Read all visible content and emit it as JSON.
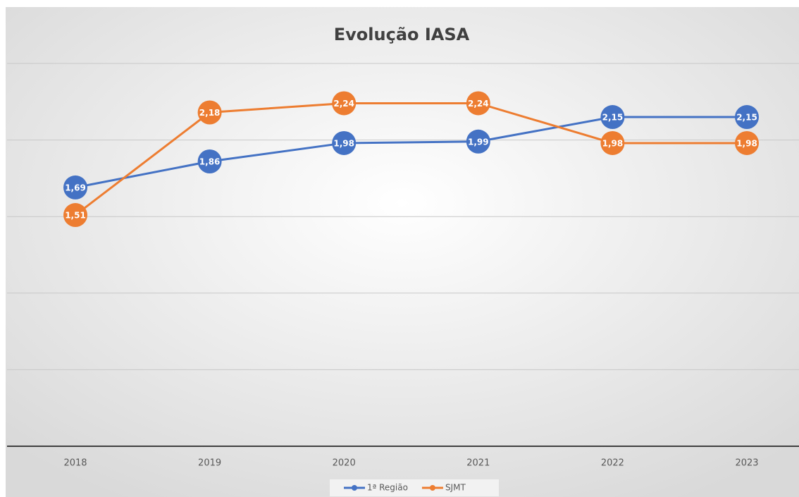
{
  "chart_data": {
    "type": "line",
    "title": "Evolução IASA",
    "categories": [
      "2018",
      "2019",
      "2020",
      "2021",
      "2022",
      "2023"
    ],
    "series": [
      {
        "name": "1ª Região",
        "color": "#4472c4",
        "values": [
          1.69,
          1.86,
          1.98,
          1.99,
          2.15,
          2.15
        ],
        "value_labels": [
          "1,69",
          "1,86",
          "1,98",
          "1,99",
          "2,15",
          "2,15"
        ]
      },
      {
        "name": "SJMT",
        "color": "#ed7d31",
        "values": [
          1.51,
          2.18,
          2.24,
          2.24,
          1.98,
          1.98
        ],
        "value_labels": [
          "1,51",
          "2,18",
          "2,24",
          "2,24",
          "1,98",
          "1,98"
        ]
      }
    ],
    "ylim": [
      0,
      2.5
    ],
    "yticks": [
      0,
      0.5,
      1,
      1.5,
      2,
      2.5
    ],
    "grid": true
  }
}
